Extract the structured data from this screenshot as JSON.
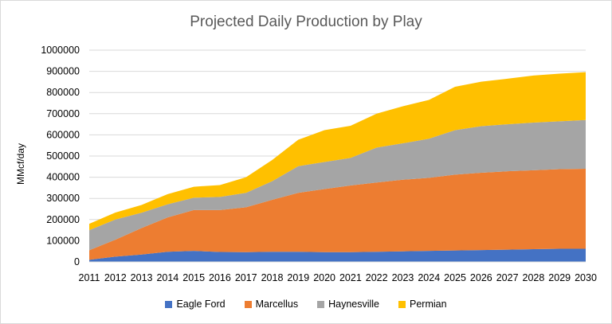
{
  "chart_data": {
    "type": "area",
    "stacked": true,
    "title": "Projected Daily Production by Play",
    "ylabel": "MMcf/day",
    "xlabel": "",
    "ylim": [
      0,
      1000000
    ],
    "y_ticks": [
      0,
      100000,
      200000,
      300000,
      400000,
      500000,
      600000,
      700000,
      800000,
      900000,
      1000000
    ],
    "grid": true,
    "legend": "bottom",
    "categories": [
      "2011",
      "2012",
      "2013",
      "2014",
      "2015",
      "2016",
      "2017",
      "2018",
      "2019",
      "2020",
      "2021",
      "2022",
      "2023",
      "2024",
      "2025",
      "2026",
      "2027",
      "2028",
      "2029",
      "2030"
    ],
    "series": [
      {
        "name": "Eagle Ford",
        "color": "#4472C4",
        "values": [
          10000,
          25000,
          35000,
          48000,
          52000,
          47000,
          46000,
          48000,
          48000,
          46000,
          46000,
          48000,
          50000,
          52000,
          54000,
          56000,
          58000,
          60000,
          62000,
          62000
        ]
      },
      {
        "name": "Marcellus",
        "color": "#ED7D31",
        "values": [
          45000,
          80000,
          125000,
          162000,
          193000,
          198000,
          212000,
          245000,
          278000,
          298000,
          315000,
          327000,
          338000,
          345000,
          358000,
          365000,
          370000,
          373000,
          376000,
          378000
        ]
      },
      {
        "name": "Haynesville",
        "color": "#A5A5A5",
        "values": [
          95000,
          95000,
          72000,
          62000,
          58000,
          62000,
          68000,
          88000,
          126000,
          128000,
          130000,
          165000,
          172000,
          185000,
          210000,
          220000,
          222000,
          225000,
          226000,
          230000
        ]
      },
      {
        "name": "Permian",
        "color": "#FFC000",
        "values": [
          30000,
          33000,
          37000,
          48000,
          52000,
          56000,
          74000,
          100000,
          125000,
          150000,
          152000,
          160000,
          175000,
          183000,
          205000,
          210000,
          215000,
          222000,
          225000,
          226000
        ]
      }
    ]
  }
}
